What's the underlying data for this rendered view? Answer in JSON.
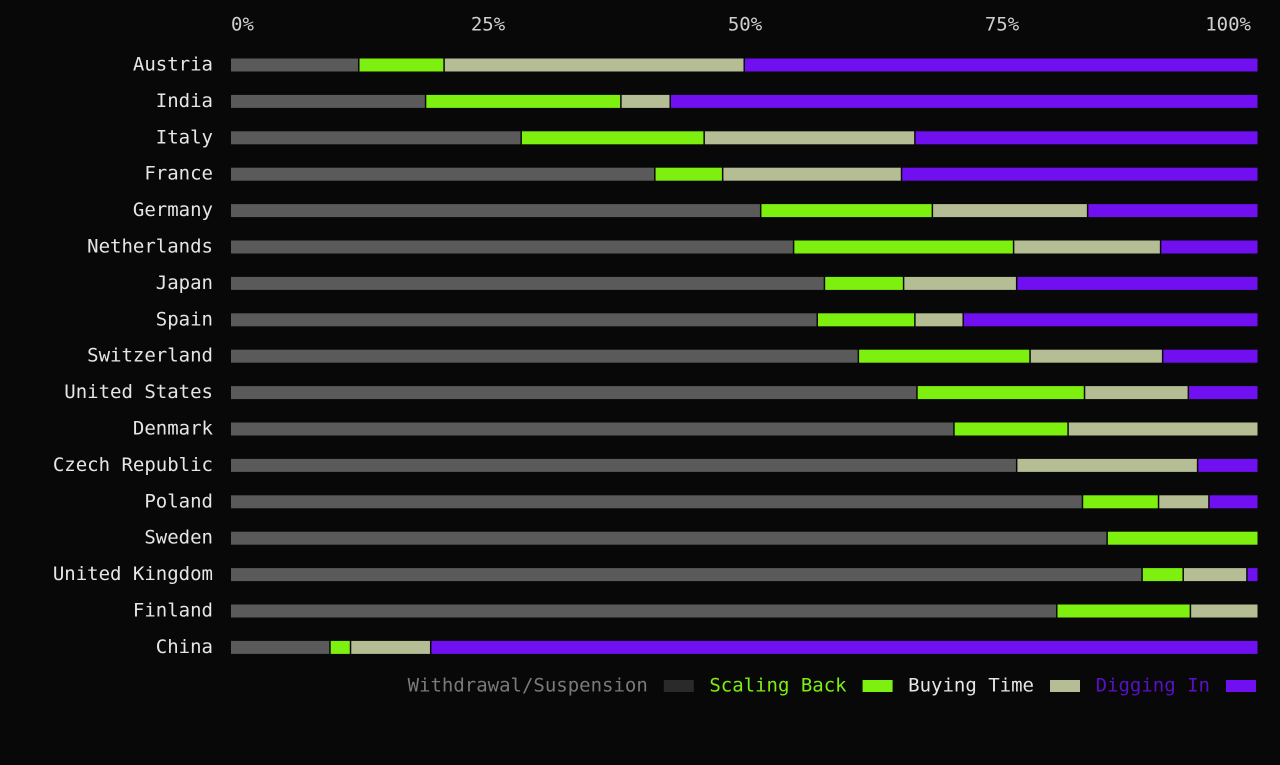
{
  "chart_data": {
    "type": "bar",
    "orientation": "horizontal",
    "stacked": "percent",
    "xlim": [
      0,
      100
    ],
    "x_ticks": [
      "0%",
      "25%",
      "50%",
      "75%",
      "100%"
    ],
    "categories": [
      "Austria",
      "India",
      "Italy",
      "France",
      "Germany",
      "Netherlands",
      "Japan",
      "Spain",
      "Switzerland",
      "United States",
      "Denmark",
      "Czech Republic",
      "Poland",
      "Sweden",
      "United Kingdom",
      "Finland",
      "China"
    ],
    "series": [
      {
        "name": "Withdrawal/Suspension",
        "color": "#5a5a5a",
        "legend_swatch": "#2a2a2a",
        "legend_text_color": "#7a7a7a",
        "values": [
          12.5,
          19.0,
          28.3,
          41.3,
          51.6,
          54.8,
          57.8,
          57.1,
          61.1,
          66.8,
          70.4,
          76.5,
          82.9,
          85.3,
          88.7,
          80.4,
          9.7
        ]
      },
      {
        "name": "Scaling Back",
        "color": "#7ef010",
        "legend_swatch": "#7ef010",
        "legend_text_color": "#7ef010",
        "values": [
          8.3,
          19.0,
          17.8,
          6.6,
          16.7,
          21.4,
          7.7,
          9.5,
          16.7,
          16.3,
          11.1,
          0,
          7.4,
          14.7,
          4.0,
          13.0,
          2.0
        ]
      },
      {
        "name": "Buying Time",
        "color": "#b4bd94",
        "legend_swatch": "#b4bd94",
        "legend_text_color": "#e6e6e6",
        "values": [
          29.2,
          4.8,
          20.5,
          17.4,
          15.1,
          14.3,
          11.0,
          4.7,
          12.9,
          10.1,
          18.5,
          17.6,
          4.9,
          0,
          6.2,
          6.6,
          7.8
        ]
      },
      {
        "name": "Digging In",
        "color": "#7010f0",
        "legend_swatch": "#7010f0",
        "legend_text_color": "#5a10c8",
        "values": [
          50.0,
          57.2,
          33.4,
          34.7,
          16.6,
          9.5,
          23.5,
          28.7,
          9.3,
          6.8,
          0,
          5.9,
          4.8,
          0,
          1.1,
          0,
          80.5
        ]
      }
    ],
    "grid": false,
    "legend_position": "bottom-right"
  }
}
